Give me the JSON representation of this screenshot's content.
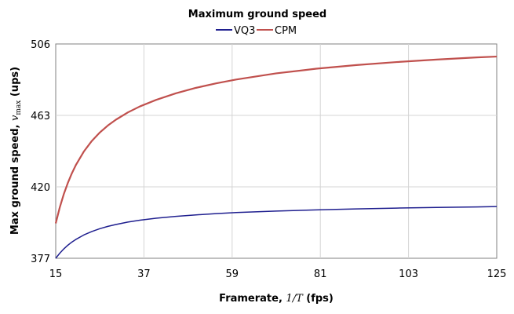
{
  "chart_data": {
    "type": "line",
    "title": "Maximum ground speed",
    "xlabel": {
      "prefix": "Framerate, ",
      "math": "1/T",
      "suffix": " (fps)"
    },
    "ylabel": {
      "prefix": "Max ground speed, ",
      "math": "v",
      "subscript": "max",
      "suffix": "  (ups)"
    },
    "xlim": [
      15,
      125
    ],
    "ylim": [
      377,
      506
    ],
    "xticks": [
      "15",
      "37",
      "59",
      "81",
      "103",
      "125"
    ],
    "yticks": [
      "377",
      "420",
      "463",
      "506"
    ],
    "xtick_values": [
      15,
      37,
      59,
      81,
      103,
      125
    ],
    "ytick_values": [
      377,
      420,
      463,
      506
    ],
    "grid": true,
    "legend_position": "top-center",
    "x": [
      15,
      16,
      17,
      18,
      19,
      20,
      22,
      24,
      26,
      28,
      30,
      33,
      36,
      40,
      45,
      50,
      55,
      60,
      70,
      80,
      90,
      100,
      110,
      120,
      125
    ],
    "series": [
      {
        "name": "VQ3",
        "color": "#1f1f8f",
        "values": [
          377.0,
          380.0,
          382.6,
          384.8,
          386.7,
          388.3,
          391.0,
          393.1,
          394.8,
          396.2,
          397.3,
          398.8,
          399.9,
          401.1,
          402.2,
          403.1,
          403.9,
          404.5,
          405.4,
          406.1,
          406.7,
          407.2,
          407.6,
          407.9,
          408.1
        ]
      },
      {
        "name": "CPM",
        "color": "#c0504d",
        "values": [
          398.0,
          407.5,
          415.5,
          422.2,
          428.0,
          433.0,
          441.2,
          447.6,
          452.7,
          456.9,
          460.4,
          464.8,
          468.4,
          472.3,
          476.3,
          479.6,
          482.3,
          484.6,
          488.3,
          491.1,
          493.3,
          495.1,
          496.6,
          497.9,
          498.4
        ]
      }
    ]
  }
}
